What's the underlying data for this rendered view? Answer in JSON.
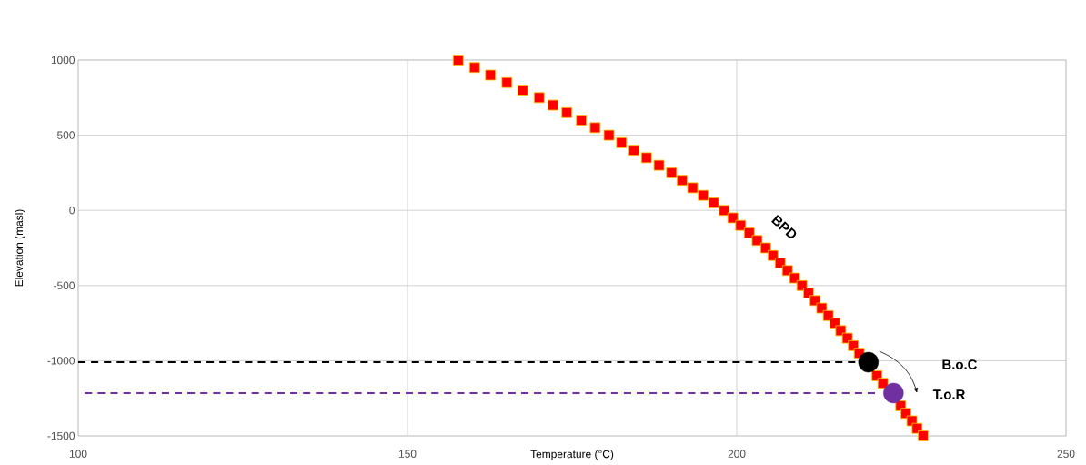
{
  "chart_data": {
    "type": "scatter",
    "xlabel": "Temperature (°C)",
    "ylabel": "Elevation (masl)",
    "xlim": [
      100,
      250
    ],
    "ylim": [
      -1500,
      1000
    ],
    "xticks": [
      100,
      150,
      200,
      250
    ],
    "yticks": [
      -1500,
      -1000,
      -500,
      0,
      500,
      1000
    ],
    "grid": true,
    "series": [
      {
        "type": "line",
        "color": "#000000",
        "line_style": "dashed",
        "marker": "none",
        "x": [
          100,
          218
        ],
        "values": [
          -1010,
          -1010
        ]
      },
      {
        "type": "line",
        "color": "#7030a0",
        "line_style": "dashed",
        "marker": "none",
        "x": [
          101,
          221
        ],
        "values": [
          -1215,
          -1215
        ]
      },
      {
        "color": "#ff0000",
        "marker": "square",
        "x": [
          157.7,
          160.2,
          162.6,
          165.1,
          167.5,
          170.0,
          172.1,
          174.2,
          176.4,
          178.5,
          180.6,
          182.5,
          184.4,
          186.3,
          188.2,
          190.1,
          191.7,
          193.3,
          194.9,
          196.5,
          198.1,
          199.4,
          200.6,
          201.9,
          203.1,
          204.4,
          205.5,
          206.6,
          207.7,
          208.8,
          209.9,
          210.9,
          211.9,
          212.9,
          213.9,
          214.9,
          215.8,
          216.8,
          217.7,
          218.6,
          219.5,
          220.4,
          221.3,
          222.2,
          223.1,
          224.0,
          224.9,
          225.7,
          226.6,
          227.4,
          228.3
        ],
        "values": [
          1000,
          950,
          900,
          850,
          800,
          750,
          700,
          650,
          600,
          550,
          500,
          450,
          400,
          350,
          300,
          250,
          200,
          150,
          100,
          50,
          0,
          -50,
          -100,
          -150,
          -200,
          -250,
          -300,
          -350,
          -400,
          -450,
          -500,
          -550,
          -600,
          -650,
          -700,
          -750,
          -800,
          -850,
          -900,
          -950,
          null,
          null,
          -1100,
          -1150,
          null,
          null,
          -1300,
          -1350,
          -1400,
          -1450,
          -1500
        ]
      },
      {
        "color": "#000000",
        "marker": "circle",
        "x": [
          220.0
        ],
        "values": [
          -1010
        ]
      },
      {
        "color": "#7030a0",
        "marker": "circle",
        "x": [
          223.8
        ],
        "values": [
          -1215
        ]
      }
    ],
    "annotations": [
      "BPD",
      "B.o.C",
      "T.o.R"
    ]
  }
}
